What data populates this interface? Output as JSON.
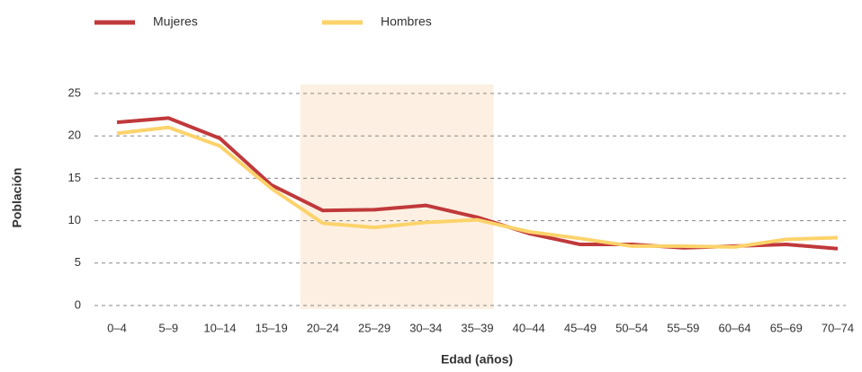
{
  "chart_data": {
    "type": "line",
    "categories": [
      "0–4",
      "5–9",
      "10–14",
      "15–19",
      "20–24",
      "25–29",
      "30–34",
      "35–39",
      "40–44",
      "45–49",
      "50–54",
      "55–59",
      "60–64",
      "65–69",
      "70–74"
    ],
    "series": [
      {
        "name": "Mujeres",
        "color": "#c0393b",
        "values": [
          21.6,
          22.1,
          19.7,
          14.2,
          11.2,
          11.3,
          11.8,
          10.4,
          8.5,
          7.2,
          7.2,
          6.8,
          7.0,
          7.2,
          6.7
        ]
      },
      {
        "name": "Hombres",
        "color": "#fcd36b",
        "values": [
          20.3,
          21.0,
          18.8,
          13.8,
          9.7,
          9.2,
          9.8,
          10.1,
          8.7,
          7.9,
          7.0,
          7.0,
          6.9,
          7.8,
          8.0
        ]
      }
    ],
    "ylim": [
      0,
      25
    ],
    "yticks": [
      0,
      5,
      10,
      15,
      20,
      25
    ],
    "grid": true,
    "y_label": "Población",
    "x_label": "Edad (años)"
  }
}
